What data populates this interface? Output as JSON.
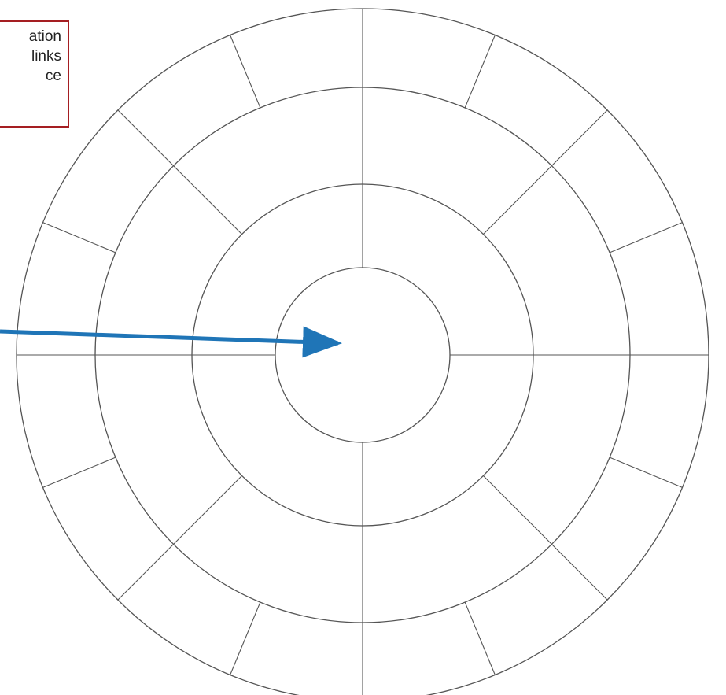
{
  "callout": {
    "lines": [
      "ation",
      "links",
      "ce"
    ],
    "border_color": "#a51e22"
  },
  "wheel": {
    "ring_count": 4,
    "spokes_between_ring1_ring2": 4,
    "spokes_between_ring2_ring3": 8,
    "spokes_between_ring3_ring4": 16,
    "line_color": "#555555"
  },
  "arrow": {
    "color": "#1f75b7",
    "points_to": "center"
  }
}
